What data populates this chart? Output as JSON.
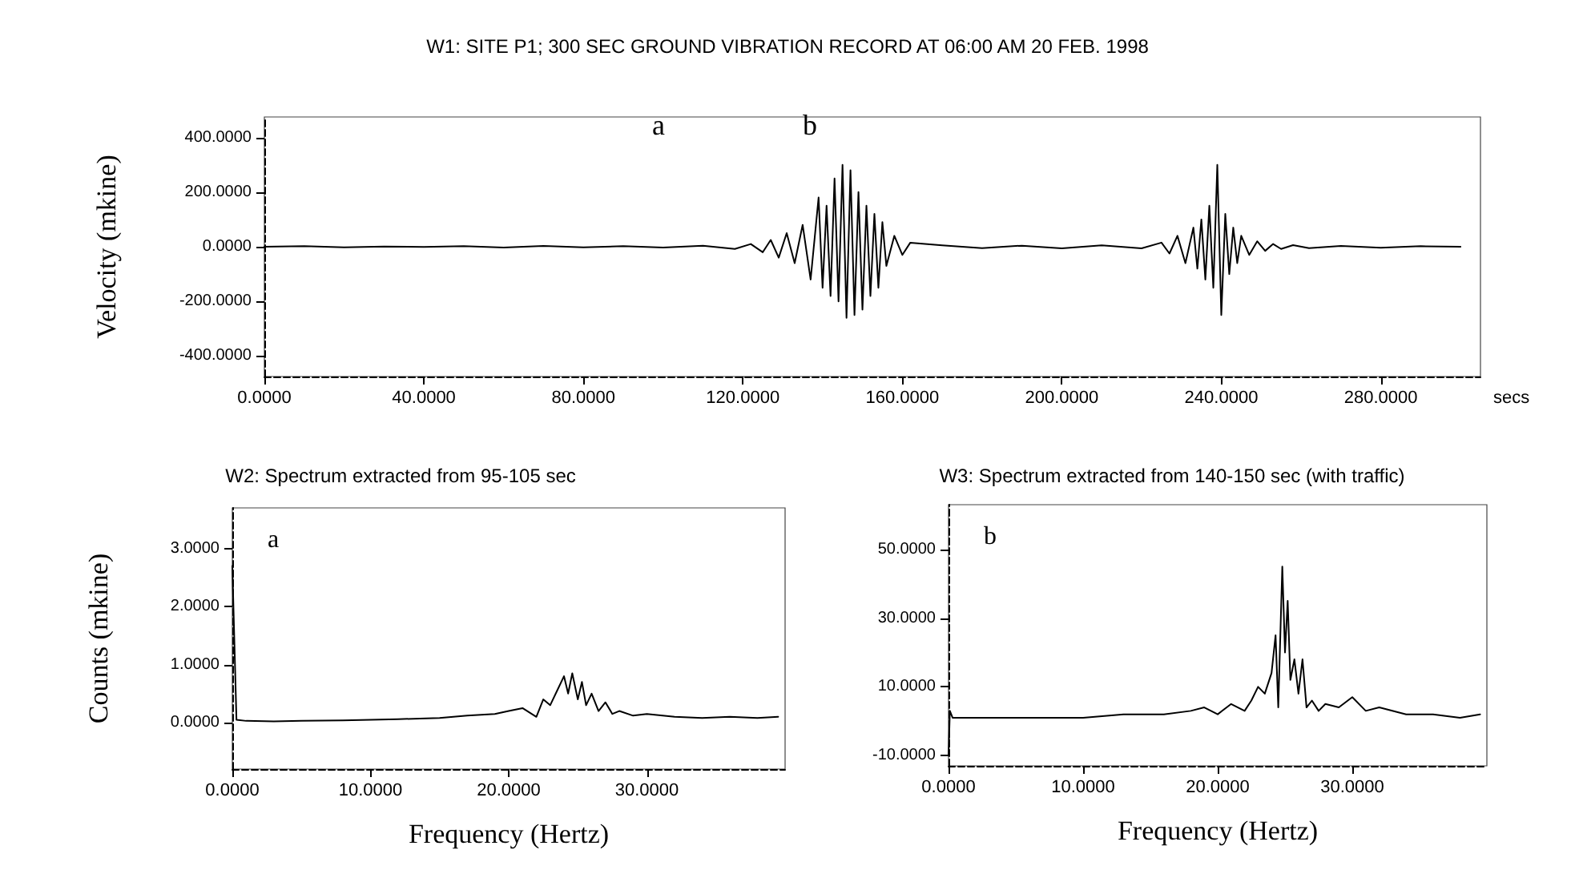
{
  "chart_data": [
    {
      "type": "line",
      "title": "W1: SITE P1; 300 SEC GROUND VIBRATION RECORD AT 06:00 AM 20 FEB. 1998",
      "xlabel": "secs",
      "ylabel": "Velocity (mkine)",
      "xlim": [
        0,
        305
      ],
      "ylim": [
        -475,
        475
      ],
      "xticks": [
        {
          "value": 0,
          "label": "0.0000"
        },
        {
          "value": 40,
          "label": "40.0000"
        },
        {
          "value": 80,
          "label": "80.0000"
        },
        {
          "value": 120,
          "label": "120.0000"
        },
        {
          "value": 160,
          "label": "160.0000"
        },
        {
          "value": 200,
          "label": "200.0000"
        },
        {
          "value": 240,
          "label": "240.0000"
        },
        {
          "value": 280,
          "label": "280.0000"
        }
      ],
      "yticks": [
        {
          "value": -400,
          "label": "-400.0000"
        },
        {
          "value": -200,
          "label": "-200.0000"
        },
        {
          "value": 0,
          "label": "0.0000"
        },
        {
          "value": 200,
          "label": "200.0000"
        },
        {
          "value": 400,
          "label": "400.0000"
        }
      ],
      "annotations": [
        "a",
        "b"
      ],
      "marker": "none",
      "line_style": "solid",
      "series": [
        {
          "color": "#000000",
          "x": [
            0,
            10,
            20,
            30,
            40,
            50,
            60,
            70,
            80,
            90,
            100,
            110,
            118,
            122,
            125,
            127,
            129,
            131,
            133,
            135,
            137,
            139,
            140,
            141,
            142,
            143,
            144,
            145,
            146,
            147,
            148,
            149,
            150,
            151,
            152,
            153,
            154,
            155,
            156,
            158,
            160,
            162,
            170,
            180,
            190,
            200,
            210,
            220,
            225,
            227,
            229,
            231,
            233,
            234,
            235,
            236,
            237,
            238,
            239,
            240,
            241,
            242,
            243,
            244,
            245,
            247,
            249,
            251,
            253,
            255,
            258,
            262,
            270,
            280,
            290,
            300
          ],
          "values": [
            0,
            2,
            -2,
            1,
            -1,
            2,
            -3,
            3,
            -2,
            2,
            -3,
            4,
            -8,
            10,
            -20,
            25,
            -40,
            50,
            -60,
            80,
            -120,
            180,
            -150,
            150,
            -180,
            250,
            -200,
            300,
            -260,
            280,
            -250,
            200,
            -230,
            150,
            -180,
            120,
            -150,
            90,
            -70,
            40,
            -30,
            15,
            5,
            -5,
            4,
            -6,
            5,
            -6,
            15,
            -25,
            40,
            -60,
            70,
            -80,
            100,
            -120,
            150,
            -150,
            300,
            -250,
            120,
            -100,
            70,
            -60,
            40,
            -30,
            20,
            -15,
            10,
            -8,
            6,
            -5,
            3,
            -4,
            2,
            0
          ]
        }
      ]
    },
    {
      "type": "line",
      "title": "W2: Spectrum extracted from 95-105 sec",
      "xlabel": "Frequency (Hertz)",
      "ylabel": "Counts (mkine)",
      "xlim": [
        0,
        40
      ],
      "ylim": [
        -0.8,
        3.7
      ],
      "xticks": [
        {
          "value": 0,
          "label": "0.0000"
        },
        {
          "value": 10,
          "label": "10.0000"
        },
        {
          "value": 20,
          "label": "20.0000"
        },
        {
          "value": 30,
          "label": "30.0000"
        }
      ],
      "yticks": [
        {
          "value": 0,
          "label": "0.0000"
        },
        {
          "value": 1,
          "label": "1.0000"
        },
        {
          "value": 2,
          "label": "2.0000"
        },
        {
          "value": 3,
          "label": "3.0000"
        }
      ],
      "annotations": [
        "a"
      ],
      "marker": "none",
      "line_style": "solid",
      "series": [
        {
          "color": "#000000",
          "x": [
            0,
            0.3,
            1,
            3,
            5,
            8,
            10,
            12,
            15,
            17,
            19,
            20,
            21,
            22,
            22.5,
            23,
            23.5,
            24,
            24.3,
            24.6,
            25,
            25.3,
            25.6,
            26,
            26.5,
            27,
            27.5,
            28,
            29,
            30,
            32,
            34,
            36,
            38,
            39.5
          ],
          "values": [
            2.7,
            0.05,
            0.03,
            0.02,
            0.03,
            0.04,
            0.05,
            0.06,
            0.08,
            0.12,
            0.15,
            0.2,
            0.25,
            0.1,
            0.4,
            0.3,
            0.55,
            0.8,
            0.5,
            0.85,
            0.4,
            0.7,
            0.3,
            0.5,
            0.2,
            0.35,
            0.15,
            0.2,
            0.12,
            0.15,
            0.1,
            0.08,
            0.1,
            0.08,
            0.1
          ]
        }
      ]
    },
    {
      "type": "line",
      "title": "W3: Spectrum extracted from 140-150 sec (with traffic)",
      "xlabel": "Frequency (Hertz)",
      "xlim": [
        0,
        40
      ],
      "ylim": [
        -13,
        63
      ],
      "xticks": [
        {
          "value": 0,
          "label": "0.0000"
        },
        {
          "value": 10,
          "label": "10.0000"
        },
        {
          "value": 20,
          "label": "20.0000"
        },
        {
          "value": 30,
          "label": "30.0000"
        }
      ],
      "yticks": [
        {
          "value": -10,
          "label": "-10.0000"
        },
        {
          "value": 10,
          "label": "10.0000"
        },
        {
          "value": 30,
          "label": "30.0000"
        },
        {
          "value": 50,
          "label": "50.0000"
        }
      ],
      "annotations": [
        "b"
      ],
      "marker": "none",
      "line_style": "solid",
      "series": [
        {
          "color": "#000000",
          "x": [
            0,
            0.1,
            0.3,
            3,
            6,
            10,
            13,
            16,
            18,
            19,
            20,
            21,
            22,
            22.5,
            23,
            23.5,
            24,
            24.3,
            24.5,
            24.8,
            25,
            25.2,
            25.4,
            25.7,
            26,
            26.3,
            26.6,
            27,
            27.5,
            28,
            29,
            30,
            31,
            32,
            34,
            36,
            38,
            39.5
          ],
          "values": [
            -10,
            3,
            1,
            1,
            1,
            1,
            2,
            2,
            3,
            4,
            2,
            5,
            3,
            6,
            10,
            8,
            14,
            25,
            4,
            45,
            20,
            35,
            12,
            18,
            8,
            18,
            4,
            6,
            3,
            5,
            4,
            7,
            3,
            4,
            2,
            2,
            1,
            2
          ]
        }
      ]
    }
  ]
}
